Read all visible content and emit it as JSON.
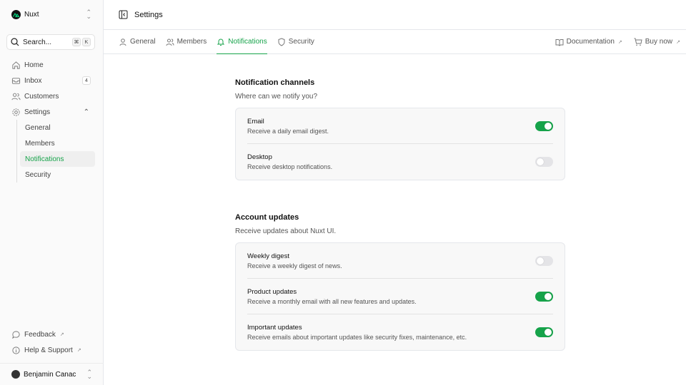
{
  "colors": {
    "accent": "#16a34a",
    "toggle_off": "#e4e4e7"
  },
  "sidebar": {
    "team": "Nuxt",
    "search": {
      "placeholder": "Search...",
      "kbd": [
        "⌘",
        "K"
      ]
    },
    "items": [
      {
        "label": "Home",
        "icon": "home-icon"
      },
      {
        "label": "Inbox",
        "icon": "inbox-icon",
        "badge": "4"
      },
      {
        "label": "Customers",
        "icon": "users-icon"
      },
      {
        "label": "Settings",
        "icon": "gear-icon"
      }
    ],
    "settings_children": [
      "General",
      "Members",
      "Notifications",
      "Security"
    ],
    "active_child": "Notifications",
    "footer": [
      {
        "label": "Feedback",
        "icon": "chat-icon"
      },
      {
        "label": "Help & Support",
        "icon": "info-icon"
      }
    ],
    "user": "Benjamin Canac"
  },
  "header": {
    "title": "Settings"
  },
  "tabs": [
    {
      "label": "General"
    },
    {
      "label": "Members"
    },
    {
      "label": "Notifications",
      "active": true
    },
    {
      "label": "Security"
    }
  ],
  "links": [
    {
      "label": "Documentation"
    },
    {
      "label": "Buy now"
    }
  ],
  "sections": [
    {
      "title": "Notification channels",
      "description": "Where can we notify you?",
      "rows": [
        {
          "label": "Email",
          "description": "Receive a daily email digest.",
          "enabled": true
        },
        {
          "label": "Desktop",
          "description": "Receive desktop notifications.",
          "enabled": false
        }
      ]
    },
    {
      "title": "Account updates",
      "description": "Receive updates about Nuxt UI.",
      "rows": [
        {
          "label": "Weekly digest",
          "description": "Receive a weekly digest of news.",
          "enabled": false
        },
        {
          "label": "Product updates",
          "description": "Receive a monthly email with all new features and updates.",
          "enabled": true
        },
        {
          "label": "Important updates",
          "description": "Receive emails about important updates like security fixes, maintenance, etc.",
          "enabled": true
        }
      ]
    }
  ]
}
